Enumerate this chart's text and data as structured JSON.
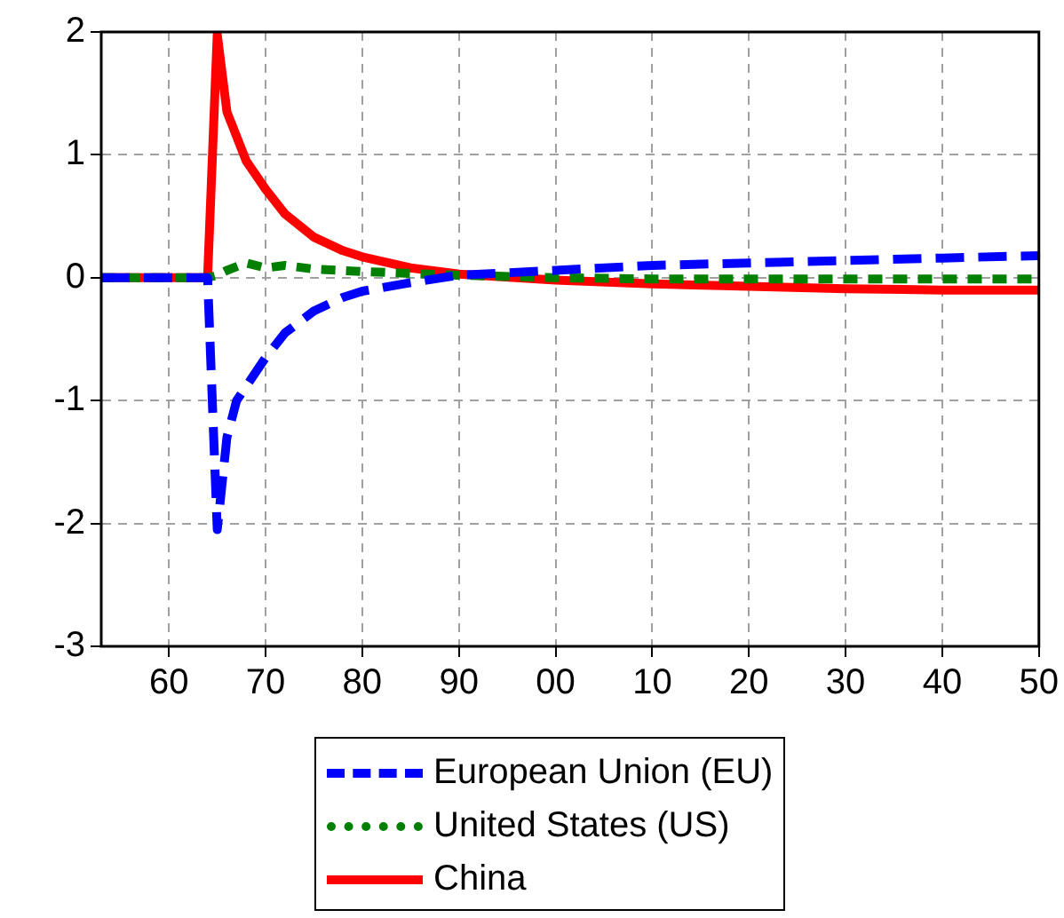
{
  "chart_data": {
    "type": "line",
    "xlim": [
      1953,
      2050
    ],
    "ylim": [
      -3,
      2
    ],
    "xticks": [
      {
        "value": 1960,
        "label": "60"
      },
      {
        "value": 1970,
        "label": "70"
      },
      {
        "value": 1980,
        "label": "80"
      },
      {
        "value": 1990,
        "label": "90"
      },
      {
        "value": 2000,
        "label": "00"
      },
      {
        "value": 2010,
        "label": "10"
      },
      {
        "value": 2020,
        "label": "20"
      },
      {
        "value": 2030,
        "label": "30"
      },
      {
        "value": 2040,
        "label": "40"
      },
      {
        "value": 2050,
        "label": "50"
      }
    ],
    "yticks": [
      -3,
      -2,
      -1,
      0,
      1,
      2
    ],
    "grid": true,
    "legend": "bottom",
    "marker": "none",
    "series": [
      {
        "name": "European Union (EU)",
        "color": "#0000ff",
        "line_style": "dashed",
        "x": [
          1953,
          1964,
          1965,
          1966,
          1967,
          1970,
          1972,
          1975,
          1978,
          1980,
          1985,
          1990,
          2000,
          2010,
          2020,
          2030,
          2040,
          2050
        ],
        "values": [
          0,
          0,
          -2.05,
          -1.3,
          -1.0,
          -0.65,
          -0.45,
          -0.27,
          -0.16,
          -0.11,
          -0.04,
          0.02,
          0.06,
          0.1,
          0.12,
          0.14,
          0.16,
          0.18
        ]
      },
      {
        "name": "United States (US)",
        "color": "#008000",
        "line_style": "dotted",
        "x": [
          1953,
          1964,
          1965,
          1966,
          1968,
          1970,
          1972,
          1975,
          1980,
          1990,
          2000,
          2010,
          2020,
          2030,
          2040,
          2050
        ],
        "values": [
          0,
          0,
          0.02,
          0.06,
          0.12,
          0.08,
          0.1,
          0.07,
          0.05,
          0.02,
          0,
          -0.01,
          -0.01,
          -0.01,
          -0.01,
          -0.01
        ]
      },
      {
        "name": "China",
        "color": "#ff0000",
        "line_style": "solid",
        "x": [
          1953,
          1964,
          1965,
          1966,
          1968,
          1970,
          1972,
          1975,
          1978,
          1980,
          1985,
          1990,
          2000,
          2010,
          2020,
          2030,
          2040,
          2050
        ],
        "values": [
          0,
          0,
          1.98,
          1.35,
          0.95,
          0.72,
          0.52,
          0.33,
          0.22,
          0.17,
          0.08,
          0.03,
          -0.02,
          -0.05,
          -0.07,
          -0.09,
          -0.1,
          -0.1
        ]
      }
    ]
  }
}
